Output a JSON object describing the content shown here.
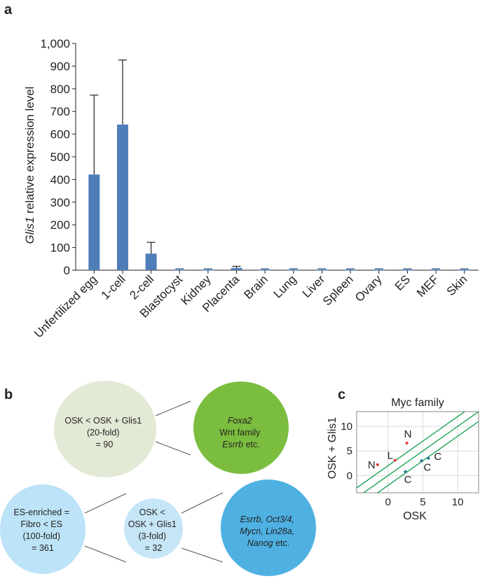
{
  "panels": {
    "a": "a",
    "b": "b",
    "c": "c"
  },
  "chart_data": [
    {
      "type": "bar",
      "title": "",
      "xlabel": "",
      "ylabel_italic": "Glis1",
      "ylabel_rest": " relative expression level",
      "ylim": [
        0,
        1000
      ],
      "yticks": [
        0,
        100,
        200,
        300,
        400,
        500,
        600,
        700,
        800,
        900,
        1000
      ],
      "ytick_labels": [
        "0",
        "100",
        "200",
        "300",
        "400",
        "500",
        "600",
        "700",
        "800",
        "900",
        "1,000"
      ],
      "categories": [
        "Unfertilized egg",
        "1-cell",
        "2-cell",
        "Blastocyst",
        "Kidney",
        "Placenta",
        "Brain",
        "Lung",
        "Liver",
        "Spleen",
        "Ovary",
        "ES",
        "MEF",
        "Skin"
      ],
      "values": [
        422,
        642,
        73,
        3,
        3,
        10,
        3,
        3,
        3,
        3,
        3,
        3,
        3,
        3
      ],
      "errors": [
        350,
        285,
        50,
        0,
        0,
        7,
        0,
        0,
        0,
        0,
        0,
        0,
        0,
        0
      ],
      "bar_color": "#4f7db8"
    },
    {
      "type": "scatter",
      "title": "Myc family",
      "xlabel": "OSK",
      "ylabel": "OSK + Glis1",
      "xlim": [
        -4.5,
        13
      ],
      "ylim": [
        -3.5,
        13
      ],
      "xticks": [
        0,
        5,
        10
      ],
      "yticks": [
        0,
        5,
        10
      ],
      "grid": true,
      "diagonal_offsets": [
        2,
        0,
        -2
      ],
      "line_color": "#1fa45a",
      "points": [
        {
          "label": "N",
          "x": -1.5,
          "y": 2.2,
          "color": "#e23a3a"
        },
        {
          "label": "L",
          "x": 1.0,
          "y": 3.1,
          "color": "#e23a3a"
        },
        {
          "label": "N",
          "x": 2.7,
          "y": 6.6,
          "color": "#e23a3a"
        },
        {
          "label": "C",
          "x": 2.5,
          "y": 0.8,
          "color": "#2a6f9a"
        },
        {
          "label": "C",
          "x": 4.8,
          "y": 3.0,
          "color": "#2a6f9a"
        },
        {
          "label": "C",
          "x": 5.8,
          "y": 3.5,
          "color": "#2a6f9a"
        }
      ]
    }
  ],
  "venn_top": {
    "left_lines": [
      "OSK < OSK + Glis1",
      "(20-fold)",
      "= 90"
    ],
    "right_line1": "Foxa2",
    "right_line2": "Wnt family",
    "right_line3_italic": "Esrrb",
    "right_line3_rest": " etc."
  },
  "venn_bottom": {
    "left_lines": [
      "ES-enriched =",
      "Fibro < ES",
      "(100-fold)",
      "= 361"
    ],
    "mid_lines": [
      "OSK <",
      "OSK + Glis1",
      "(3-fold)",
      "= 32"
    ],
    "right_line1": "Esrrb, Oct3/4,",
    "right_line2": "Mycn, Lin28a,",
    "right_line3_italic": "Nanog",
    "right_line3_rest": " etc."
  },
  "colors": {
    "venn_top_left": "#e2e9d5",
    "venn_top_right": "#7bbd3f",
    "venn_bottom_left": "#bce3f7",
    "venn_bottom_mid": "#c6e6f7",
    "venn_bottom_right": "#4eb1e2"
  }
}
